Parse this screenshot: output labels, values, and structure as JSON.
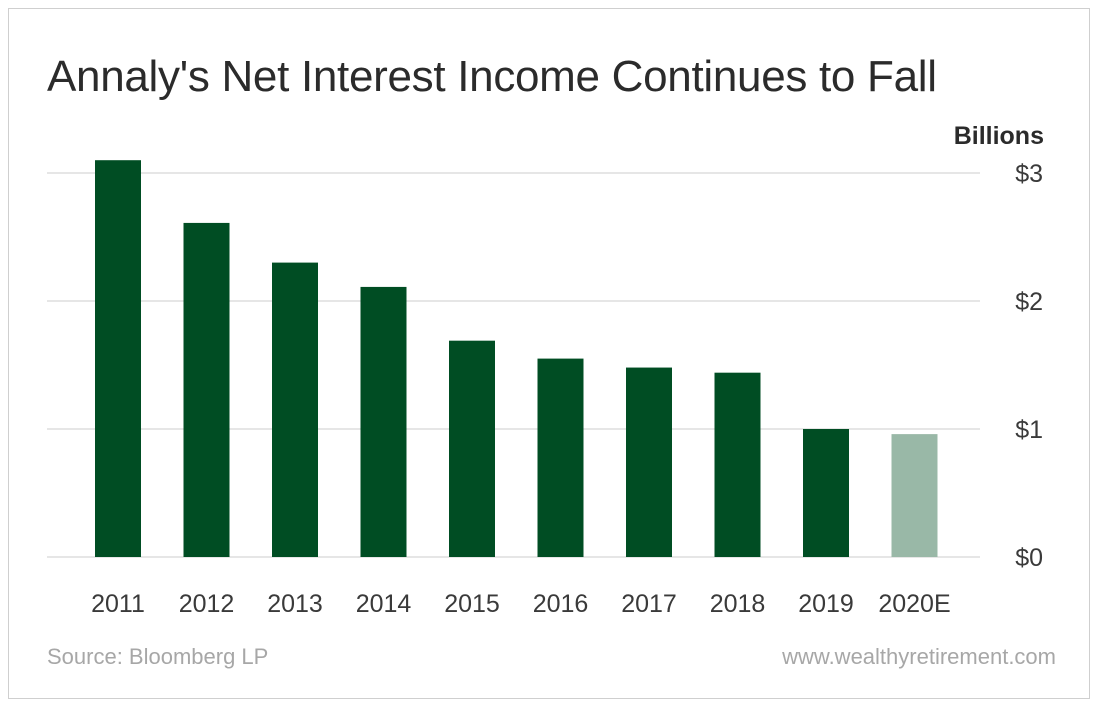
{
  "chart_data": {
    "type": "bar",
    "title": "Annaly's Net Interest Income Continues to Fall",
    "ylabel": "Billions",
    "categories": [
      "2011",
      "2012",
      "2013",
      "2014",
      "2015",
      "2016",
      "2017",
      "2018",
      "2019",
      "2020E"
    ],
    "values": [
      3.1,
      2.61,
      2.3,
      2.11,
      1.69,
      1.55,
      1.48,
      1.44,
      1.0,
      0.96
    ],
    "estimated": [
      false,
      false,
      false,
      false,
      false,
      false,
      false,
      false,
      false,
      true
    ],
    "ylim": [
      0,
      3
    ],
    "yticks": [
      0,
      1,
      2,
      3
    ],
    "ytick_labels": [
      "$0",
      "$1",
      "$2",
      "$3"
    ],
    "grid": true,
    "colors": {
      "actual": "#004d23",
      "estimate": "#99b8a7",
      "grid": "#cccccc"
    }
  },
  "footer": {
    "source": "Source: Bloomberg LP",
    "website": "www.wealthyretirement.com"
  }
}
